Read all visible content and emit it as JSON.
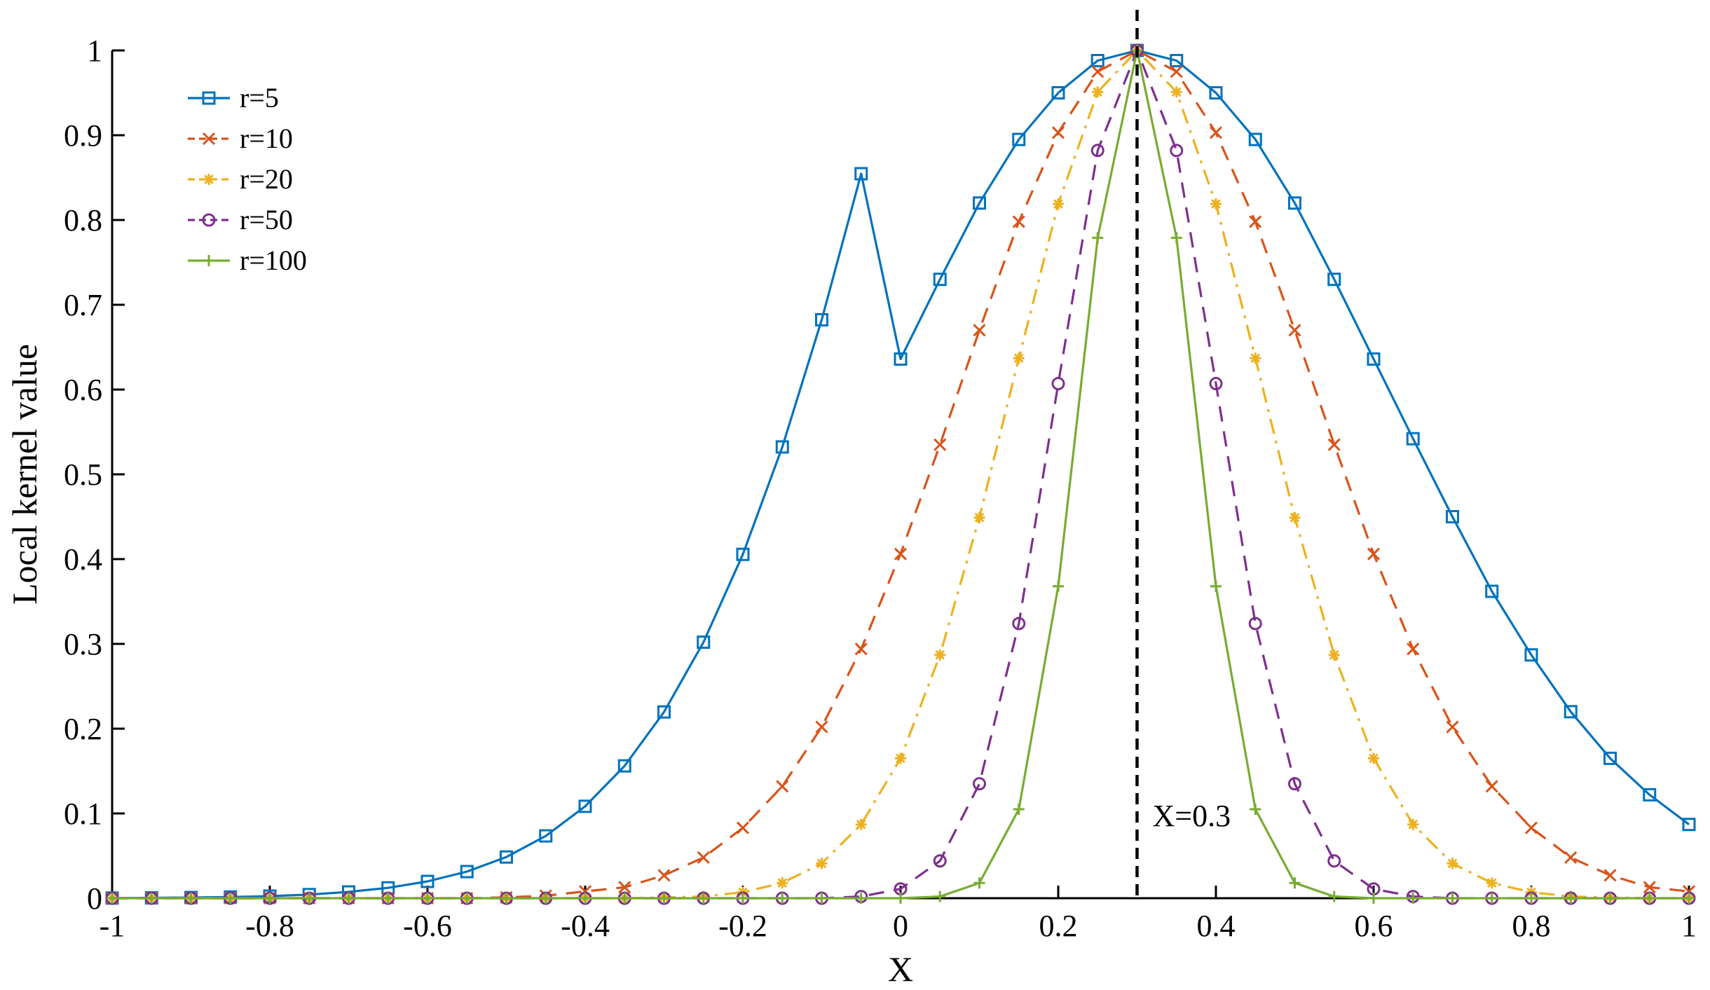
{
  "chart_data": {
    "type": "line",
    "xlabel": "X",
    "ylabel": "Local kernel value",
    "xlim": [
      -1,
      1
    ],
    "ylim": [
      0,
      1
    ],
    "grid": false,
    "legend_position": "top-left",
    "x_ticks": [
      -1,
      -0.8,
      -0.6,
      -0.4,
      -0.2,
      0,
      0.2,
      0.4,
      0.6,
      0.8,
      1
    ],
    "x_tick_labels": [
      "-1",
      "-0.8",
      "-0.6",
      "-0.4",
      "-0.2",
      "0",
      "0.2",
      "0.4",
      "0.6",
      "0.8",
      "1"
    ],
    "y_ticks": [
      0,
      0.1,
      0.2,
      0.3,
      0.4,
      0.5,
      0.6,
      0.7,
      0.8,
      0.9,
      1
    ],
    "y_tick_labels": [
      "0",
      "0.1",
      "0.2",
      "0.3",
      "0.4",
      "0.5",
      "0.6",
      "0.7",
      "0.8",
      "0.9",
      "1"
    ],
    "x": [
      -1,
      -0.95,
      -0.9,
      -0.85,
      -0.8,
      -0.75,
      -0.7,
      -0.65,
      -0.6,
      -0.55,
      -0.5,
      -0.45,
      -0.4,
      -0.35,
      -0.3,
      -0.25,
      -0.2,
      -0.15,
      -0.1,
      -0.05,
      0,
      0.05,
      0.1,
      0.15,
      0.2,
      0.25,
      0.3,
      0.35,
      0.4,
      0.45,
      0.5,
      0.55,
      0.6,
      0.65,
      0.7,
      0.75,
      0.8,
      0.85,
      0.9,
      0.95,
      1
    ],
    "series": [
      {
        "name": "r=5",
        "color": "#0072BD",
        "dash": "solid",
        "marker": "square",
        "values": [
          0.0002,
          0.0004,
          0.0008,
          0.0014,
          0.0025,
          0.0043,
          0.0074,
          0.0122,
          0.0198,
          0.0314,
          0.0486,
          0.0735,
          0.1084,
          0.1561,
          0.2197,
          0.302,
          0.4056,
          0.5323,
          0.6823,
          0.8546,
          0.636,
          0.73,
          0.82,
          0.895,
          0.95,
          0.988,
          1.0,
          0.988,
          0.95,
          0.895,
          0.82,
          0.73,
          0.636,
          0.542,
          0.45,
          0.362,
          0.287,
          0.22,
          0.165,
          0.122,
          0.087
        ]
      },
      {
        "name": "r=10",
        "color": "#D95319",
        "dash": "dashed",
        "marker": "x",
        "values": [
          0.0,
          0.0,
          0.0,
          0.0,
          0.0,
          0.0,
          0.0,
          0.0,
          0.0,
          0.0,
          0.001,
          0.003,
          0.008,
          0.013,
          0.027,
          0.048,
          0.083,
          0.132,
          0.202,
          0.294,
          0.406,
          0.535,
          0.67,
          0.798,
          0.903,
          0.975,
          1.0,
          0.975,
          0.903,
          0.798,
          0.67,
          0.535,
          0.406,
          0.294,
          0.202,
          0.132,
          0.083,
          0.048,
          0.027,
          0.013,
          0.008
        ]
      },
      {
        "name": "r=20",
        "color": "#EDB120",
        "dash": "dashdot",
        "marker": "star",
        "values": [
          0.0,
          0.0,
          0.0,
          0.0,
          0.0,
          0.0,
          0.0,
          0.0,
          0.0,
          0.0,
          0.0,
          0.0,
          0.0,
          0.0,
          0.001,
          0.002,
          0.007,
          0.018,
          0.041,
          0.087,
          0.165,
          0.287,
          0.449,
          0.637,
          0.819,
          0.951,
          1.0,
          0.951,
          0.819,
          0.637,
          0.449,
          0.287,
          0.165,
          0.087,
          0.041,
          0.018,
          0.007,
          0.002,
          0.001,
          0.0,
          0.0
        ]
      },
      {
        "name": "r=50",
        "color": "#7E2F8E",
        "dash": "dashed",
        "marker": "circle",
        "values": [
          0.0,
          0.0,
          0.0,
          0.0,
          0.0,
          0.0,
          0.0,
          0.0,
          0.0,
          0.0,
          0.0,
          0.0,
          0.0,
          0.0,
          0.0,
          0.0,
          0.0,
          0.0,
          0.0,
          0.002,
          0.011,
          0.044,
          0.135,
          0.324,
          0.607,
          0.882,
          1.0,
          0.882,
          0.607,
          0.324,
          0.135,
          0.044,
          0.011,
          0.002,
          0.0,
          0.0,
          0.0,
          0.0,
          0.0,
          0.0,
          0.0
        ]
      },
      {
        "name": "r=100",
        "color": "#77AC30",
        "dash": "solid",
        "marker": "plus",
        "values": [
          0.0,
          0.0,
          0.0,
          0.0,
          0.0,
          0.0,
          0.0,
          0.0,
          0.0,
          0.0,
          0.0,
          0.0,
          0.0,
          0.0,
          0.0,
          0.0,
          0.0,
          0.0,
          0.0,
          0.0,
          0.0,
          0.002,
          0.018,
          0.105,
          0.368,
          0.779,
          1.0,
          0.779,
          0.368,
          0.105,
          0.018,
          0.002,
          0.0,
          0.0,
          0.0,
          0.0,
          0.0,
          0.0,
          0.0,
          0.0,
          0.0
        ]
      }
    ],
    "reference_line": {
      "x": 0.3,
      "label": "X=0.3",
      "color": "#000000",
      "dash": "dashed"
    }
  }
}
